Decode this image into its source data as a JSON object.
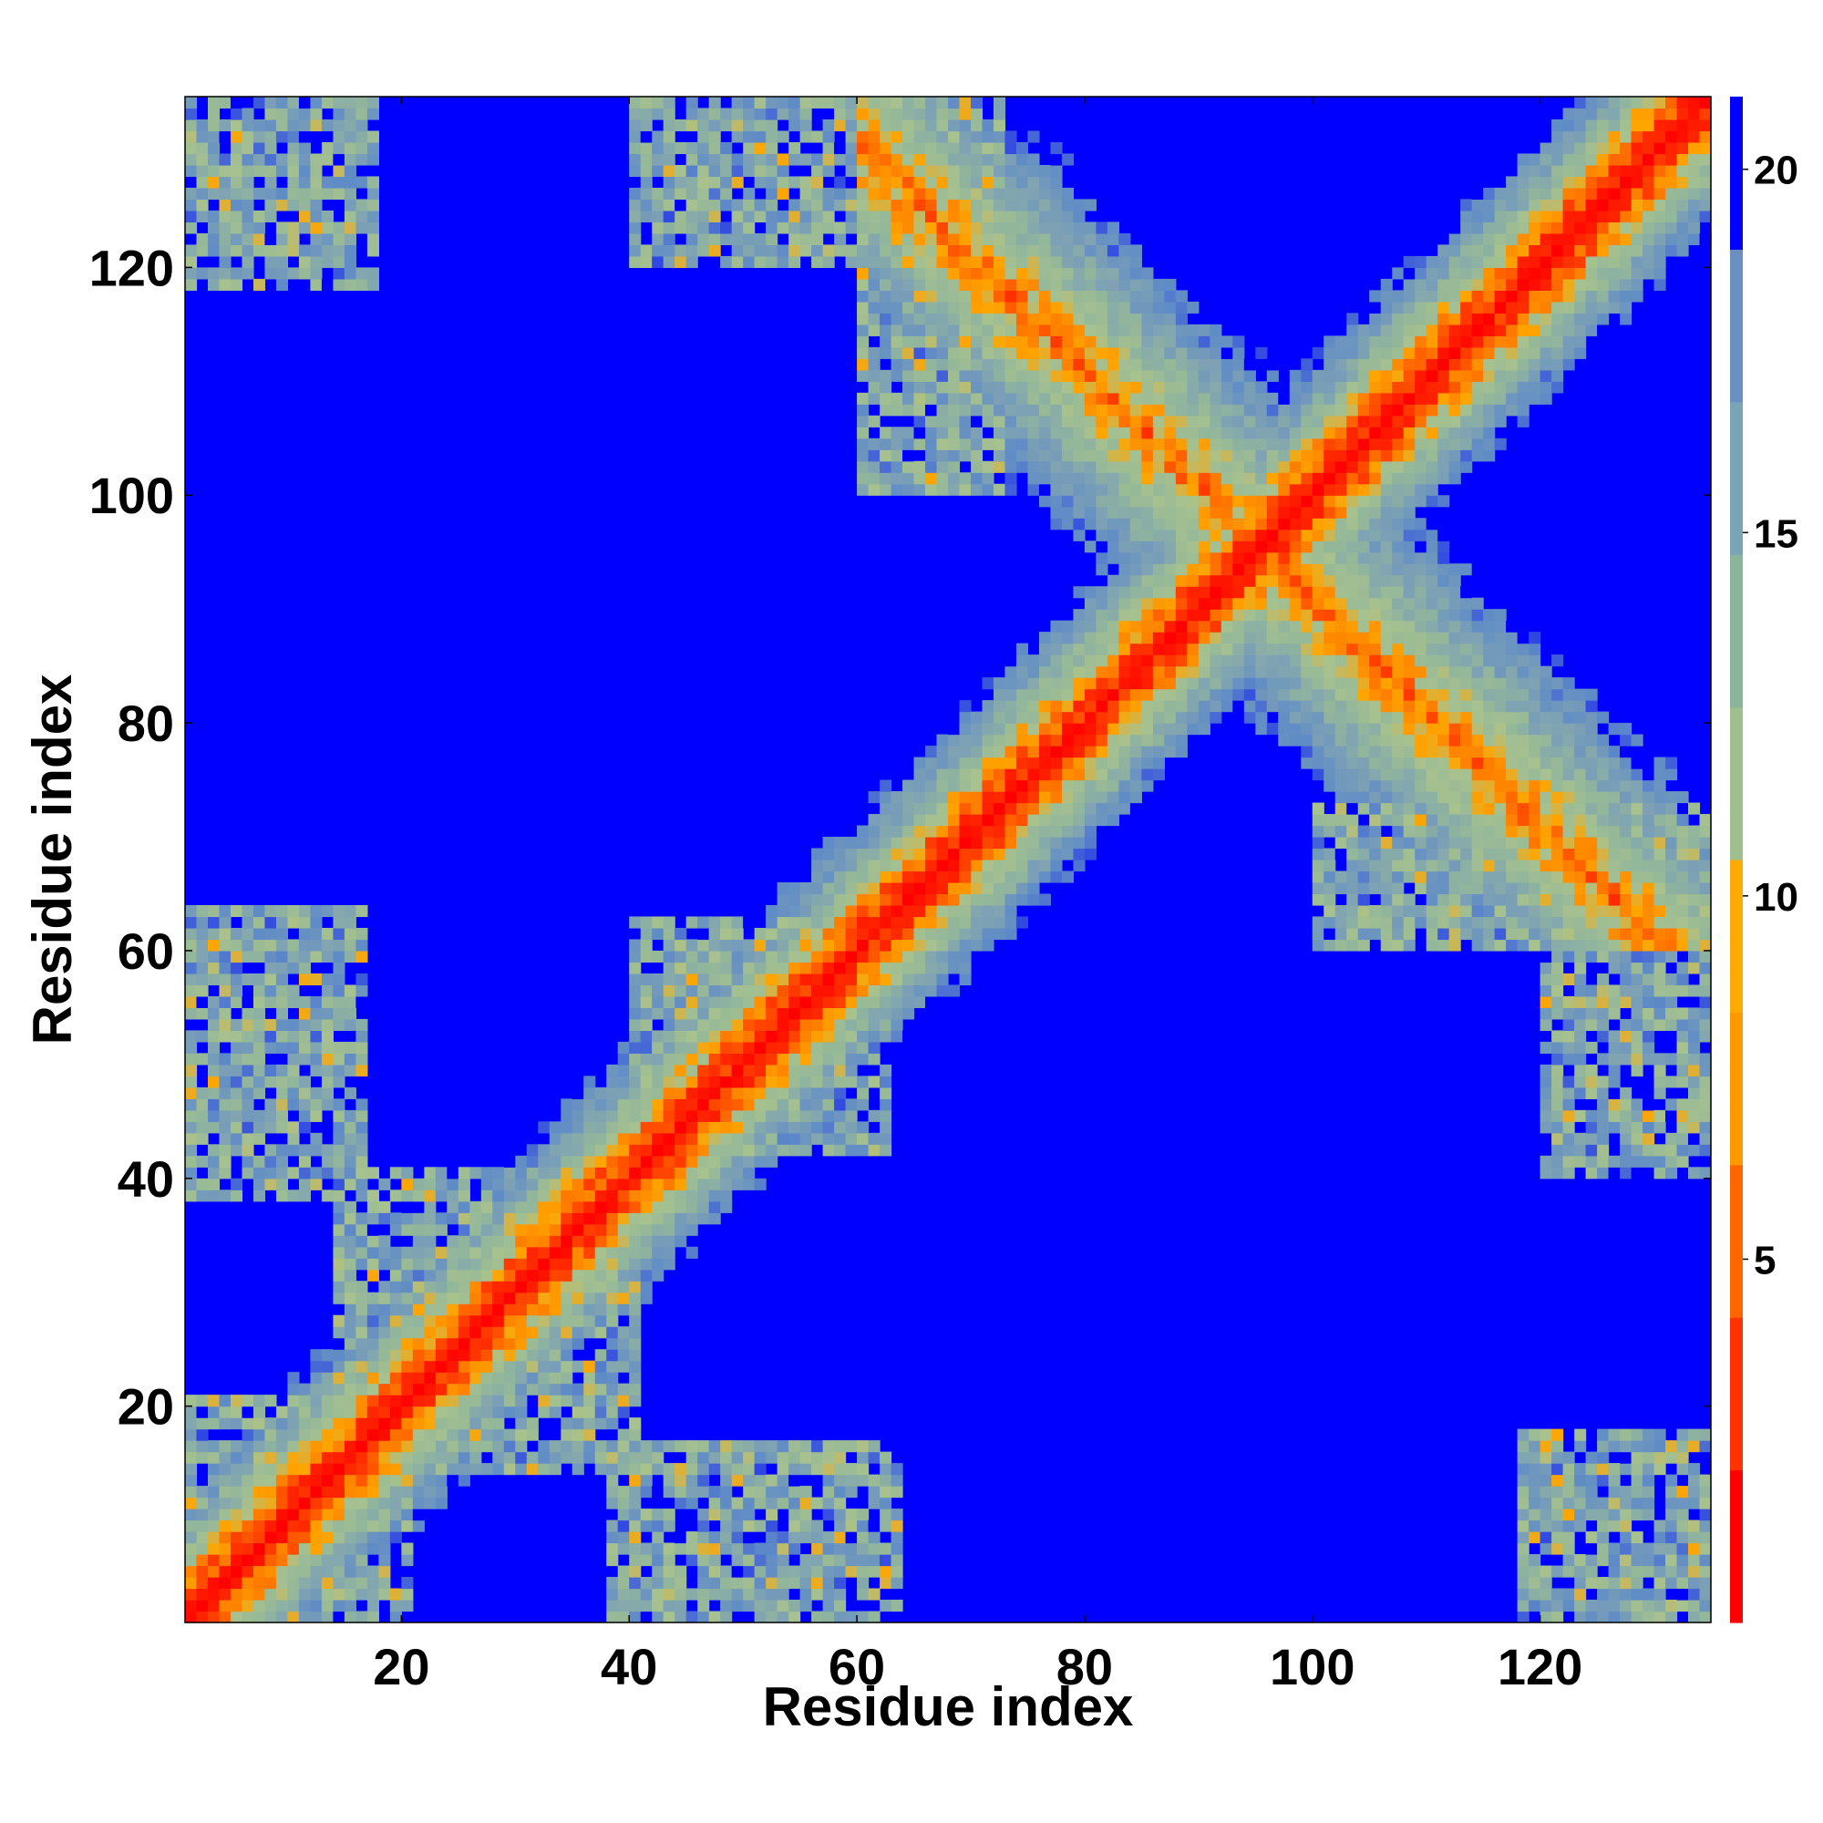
{
  "chart_data": {
    "type": "heatmap",
    "title": "",
    "xlabel": "Residue index",
    "ylabel": "Residue index",
    "n_residues": 134,
    "xlim": [
      1,
      135
    ],
    "ylim": [
      1,
      135
    ],
    "x_ticks": [
      20,
      40,
      60,
      80,
      100,
      120
    ],
    "y_ticks": [
      20,
      40,
      60,
      80,
      100,
      120
    ],
    "colorbar": {
      "min": 0,
      "max": 21,
      "ticks": [
        5,
        10,
        15,
        20
      ],
      "colors": [
        "#ff0000",
        "#ff3300",
        "#ff6600",
        "#ff9900",
        "#ffaa00",
        "#9fbf8f",
        "#8ab59a",
        "#7aa3b5",
        "#6a8fc0",
        "#0000ff"
      ]
    },
    "color_scale_stops": [
      {
        "value": 0,
        "color": "#ff0000"
      },
      {
        "value": 4,
        "color": "#ff2a00"
      },
      {
        "value": 6,
        "color": "#ff7a00"
      },
      {
        "value": 8,
        "color": "#ffa500"
      },
      {
        "value": 9,
        "color": "#a8c28e"
      },
      {
        "value": 12,
        "color": "#93b79a"
      },
      {
        "value": 15,
        "color": "#7fa3b3"
      },
      {
        "value": 19,
        "color": "#5f8bc7"
      },
      {
        "value": 20.5,
        "color": "#0000ff"
      }
    ],
    "description": "Residue-residue distance map: red diagonal (distance ~0), green/blue halos for nearby residues, blue for far (>20).",
    "contact_regions": [
      {
        "i": [
          1,
          15
        ],
        "j": [
          1,
          15
        ],
        "kind": "diagonal-block"
      },
      {
        "i": [
          40,
          62
        ],
        "j": [
          1,
          16
        ],
        "kind": "off-diagonal"
      },
      {
        "i": [
          1,
          18
        ],
        "j": [
          40,
          63
        ],
        "kind": "off-diagonal"
      },
      {
        "i": [
          45,
          60
        ],
        "j": [
          45,
          60
        ],
        "kind": "cluster"
      },
      {
        "i": [
          60,
          100
        ],
        "j": [
          100,
          134
        ],
        "kind": "anti-diagonal-band"
      },
      {
        "i": [
          100,
          134
        ],
        "j": [
          60,
          100
        ],
        "kind": "anti-diagonal-band"
      },
      {
        "i": [
          120,
          134
        ],
        "j": [
          1,
          16
        ],
        "kind": "corner"
      },
      {
        "i": [
          1,
          16
        ],
        "j": [
          120,
          134
        ],
        "kind": "corner"
      },
      {
        "i": [
          120,
          134
        ],
        "j": [
          40,
          60
        ],
        "kind": "corner"
      }
    ]
  }
}
